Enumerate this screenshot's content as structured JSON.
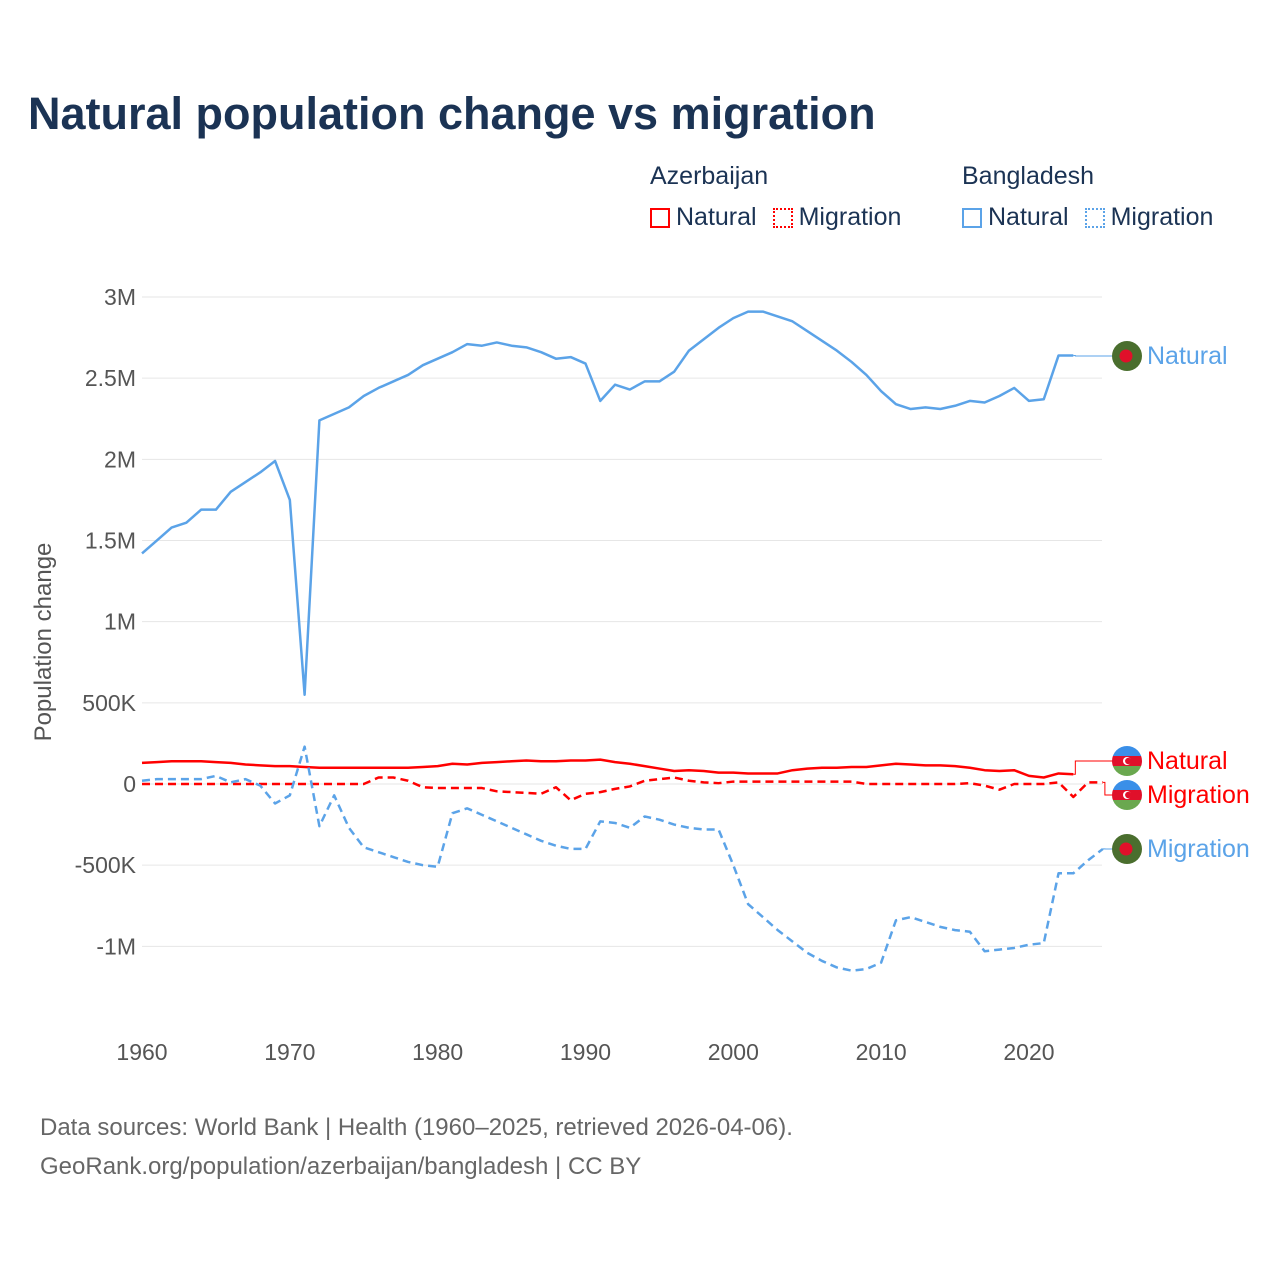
{
  "chart_data": {
    "type": "line",
    "title": "Natural population change vs migration",
    "xlabel": "",
    "ylabel": "Population change",
    "xlim": [
      1960,
      2025
    ],
    "ylim": [
      -1500000,
      3000000
    ],
    "grid": true,
    "x_ticks": [
      1960,
      1970,
      1980,
      1990,
      2000,
      2010,
      2020
    ],
    "x_tick_labels": [
      "1960",
      "1970",
      "1980",
      "1990",
      "2000",
      "2010",
      "2020"
    ],
    "y_ticks": [
      3000000,
      2500000,
      2000000,
      1500000,
      1000000,
      500000,
      0,
      -500000,
      -1000000
    ],
    "y_tick_labels": [
      "3M",
      "2.5M",
      "2M",
      "1.5M",
      "1M",
      "500K",
      "0",
      "-500K",
      "-1M"
    ],
    "legend": {
      "placement": "top-right",
      "groups": [
        {
          "country": "Azerbaijan",
          "items": [
            "Natural",
            "Migration"
          ]
        },
        {
          "country": "Bangladesh",
          "items": [
            "Natural",
            "Migration"
          ]
        }
      ]
    },
    "series": [
      {
        "name": "Azerbaijan Natural",
        "country": "Azerbaijan",
        "label": "Natural",
        "color": "#ff0000",
        "dash": "solid",
        "start_year": 1960,
        "values": [
          130000,
          135000,
          140000,
          140000,
          140000,
          135000,
          130000,
          120000,
          115000,
          110000,
          110000,
          105000,
          100000,
          100000,
          100000,
          100000,
          100000,
          100000,
          100000,
          105000,
          110000,
          125000,
          120000,
          130000,
          135000,
          140000,
          145000,
          140000,
          140000,
          145000,
          145000,
          150000,
          135000,
          125000,
          110000,
          95000,
          80000,
          85000,
          80000,
          70000,
          70000,
          65000,
          65000,
          65000,
          85000,
          95000,
          100000,
          100000,
          105000,
          105000,
          115000,
          125000,
          120000,
          115000,
          115000,
          110000,
          100000,
          85000,
          80000,
          85000,
          50000,
          40000,
          65000,
          60000
        ]
      },
      {
        "name": "Azerbaijan Migration",
        "country": "Azerbaijan",
        "label": "Migration",
        "color": "#ff0000",
        "dash": "dashed",
        "start_year": 1960,
        "values": [
          0,
          0,
          0,
          0,
          0,
          0,
          0,
          0,
          0,
          0,
          0,
          0,
          0,
          0,
          0,
          0,
          40000,
          40000,
          20000,
          -20000,
          -25000,
          -25000,
          -25000,
          -25000,
          -45000,
          -50000,
          -55000,
          -60000,
          -20000,
          -100000,
          -60000,
          -50000,
          -30000,
          -15000,
          20000,
          30000,
          40000,
          20000,
          10000,
          5000,
          15000,
          15000,
          15000,
          15000,
          15000,
          15000,
          15000,
          15000,
          15000,
          0,
          0,
          0,
          0,
          0,
          0,
          0,
          5000,
          -10000,
          -35000,
          0,
          0,
          0,
          10000,
          -80000,
          10000,
          10000
        ]
      },
      {
        "name": "Bangladesh Natural",
        "country": "Bangladesh",
        "label": "Natural",
        "color": "#5ba3e8",
        "dash": "solid",
        "start_year": 1960,
        "values": [
          1420000,
          1500000,
          1580000,
          1610000,
          1690000,
          1690000,
          1800000,
          1860000,
          1920000,
          1990000,
          1750000,
          550000,
          2240000,
          2280000,
          2320000,
          2390000,
          2440000,
          2480000,
          2520000,
          2580000,
          2620000,
          2660000,
          2710000,
          2700000,
          2720000,
          2700000,
          2690000,
          2660000,
          2620000,
          2630000,
          2590000,
          2360000,
          2460000,
          2430000,
          2480000,
          2480000,
          2540000,
          2670000,
          2740000,
          2810000,
          2870000,
          2910000,
          2910000,
          2880000,
          2850000,
          2790000,
          2730000,
          2670000,
          2600000,
          2520000,
          2420000,
          2340000,
          2310000,
          2320000,
          2310000,
          2330000,
          2360000,
          2350000,
          2390000,
          2440000,
          2360000,
          2370000,
          2640000,
          2640000
        ]
      },
      {
        "name": "Bangladesh Migration",
        "country": "Bangladesh",
        "label": "Migration",
        "color": "#5ba3e8",
        "dash": "dashed",
        "start_year": 1960,
        "values": [
          20000,
          30000,
          30000,
          30000,
          30000,
          50000,
          10000,
          30000,
          -10000,
          -120000,
          -70000,
          230000,
          -260000,
          -70000,
          -270000,
          -390000,
          -420000,
          -450000,
          -480000,
          -500000,
          -510000,
          -180000,
          -150000,
          -190000,
          -230000,
          -270000,
          -310000,
          -350000,
          -380000,
          -400000,
          -400000,
          -230000,
          -240000,
          -270000,
          -200000,
          -220000,
          -250000,
          -270000,
          -280000,
          -280000,
          -500000,
          -740000,
          -820000,
          -900000,
          -970000,
          -1040000,
          -1090000,
          -1130000,
          -1150000,
          -1140000,
          -1100000,
          -840000,
          -820000,
          -850000,
          -880000,
          -900000,
          -910000,
          -1030000,
          -1020000,
          -1010000,
          -990000,
          -980000,
          -550000,
          -550000,
          -470000,
          -400000
        ]
      }
    ]
  },
  "footer": {
    "line1": "Data sources: World Bank | Health (1960–2025, retrieved 2026-04-06).",
    "line2": "GeoRank.org/population/azerbaijan/bangladesh | CC BY"
  }
}
